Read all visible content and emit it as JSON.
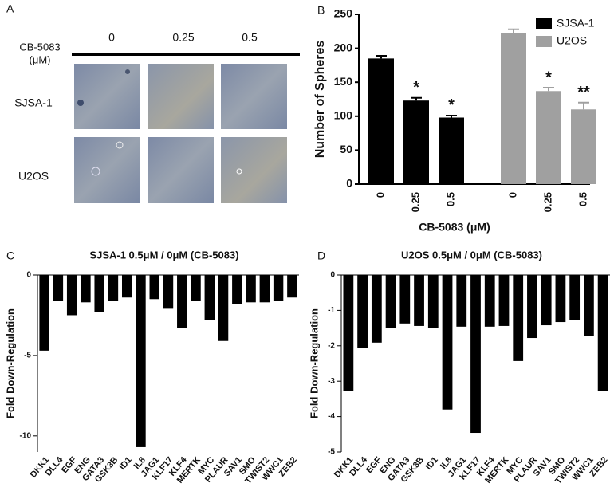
{
  "panel_labels": [
    "A",
    "B",
    "C",
    "D"
  ],
  "panel_a": {
    "treatment_label": "CB-5083",
    "unit": "(μM)",
    "doses": [
      "0",
      "0.25",
      "0.5"
    ],
    "rows": [
      "SJSA-1",
      "U2OS"
    ]
  },
  "chart_data": [
    {
      "type": "grouped-bar",
      "ylabel": "Number of Spheres",
      "xlabel": "CB-5083 (μM)",
      "categories": [
        "0",
        "0.25",
        "0.5",
        "0",
        "0.25",
        "0.5"
      ],
      "series": [
        {
          "name": "SJSA-1",
          "color": "#000000",
          "values": [
            185,
            123,
            98,
            null,
            null,
            null
          ],
          "errors": [
            4,
            4,
            3,
            null,
            null,
            null
          ],
          "annotations": [
            null,
            "*",
            "*",
            null,
            null,
            null
          ]
        },
        {
          "name": "U2OS",
          "color": "#a0a0a0",
          "values": [
            null,
            null,
            null,
            222,
            137,
            110
          ],
          "errors": [
            null,
            null,
            null,
            6,
            5,
            10
          ],
          "annotations": [
            null,
            null,
            null,
            null,
            "*",
            "**"
          ]
        }
      ],
      "ylim": [
        0,
        250
      ],
      "yticks": [
        0,
        50,
        100,
        150,
        200,
        250
      ],
      "legend": "top-right"
    },
    {
      "type": "bar",
      "title": "SJSA-1  0.5μM / 0μM (CB-5083)",
      "ylabel": "Fold Down-Regulation",
      "color": "#000000",
      "categories": [
        "DKK1",
        "DLL4",
        "EGF",
        "ENG",
        "GATA3",
        "GSK3B",
        "ID1",
        "IL8",
        "JAG1",
        "KLF17",
        "KLF4",
        "MERTK",
        "MYC",
        "PLAUR",
        "SAV1",
        "SMO",
        "TWIST2",
        "WWC1",
        "ZEB2"
      ],
      "values": [
        -4.7,
        -1.6,
        -2.5,
        -1.7,
        -2.3,
        -1.6,
        -1.4,
        -10.7,
        -1.5,
        -2.1,
        -3.3,
        -1.6,
        -2.8,
        -4.1,
        -1.8,
        -1.7,
        -1.7,
        -1.6,
        -1.4
      ],
      "ylim": [
        -11,
        0
      ],
      "yticks": [
        0,
        -5,
        -10
      ]
    },
    {
      "type": "bar",
      "title": "U2OS  0.5μM / 0μM (CB-5083)",
      "ylabel": "Fold Down-Regulation",
      "color": "#000000",
      "categories": [
        "DKK1",
        "DLL4",
        "EGF",
        "ENG",
        "GATA3",
        "GSK3B",
        "ID1",
        "IL8",
        "JAG1",
        "KLF17",
        "KLF4",
        "MERTK",
        "MYC",
        "PLAUR",
        "SAV1",
        "SMO",
        "TWIST2",
        "WWC1",
        "ZEB2"
      ],
      "values": [
        -3.27,
        -2.07,
        -1.91,
        -1.49,
        -1.37,
        -1.44,
        -1.49,
        -3.8,
        -1.46,
        -4.46,
        -1.46,
        -1.44,
        -2.43,
        -1.78,
        -1.42,
        -1.33,
        -1.28,
        -1.73,
        -3.27
      ],
      "ylim": [
        -5,
        0
      ],
      "yticks": [
        0,
        -1,
        -2,
        -3,
        -4,
        -5
      ]
    }
  ]
}
